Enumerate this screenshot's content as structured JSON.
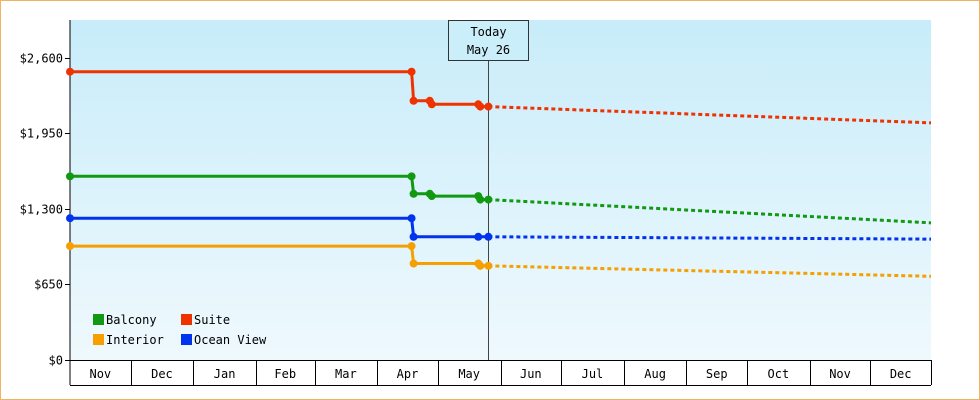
{
  "chart_data": {
    "type": "line",
    "style": "step",
    "title": "",
    "xlabel": "",
    "ylabel": "",
    "ylim": [
      0,
      2925
    ],
    "y_ticks": [
      0,
      650,
      1300,
      1950,
      2600
    ],
    "y_tick_labels": [
      "$0",
      "$650",
      "$1,300",
      "$1,950",
      "$2,600"
    ],
    "x_tick_labels": [
      "Nov",
      "Dec",
      "Jan",
      "Feb",
      "Mar",
      "Apr",
      "May",
      "Jun",
      "Jul",
      "Aug",
      "Sep",
      "Oct",
      "Nov",
      "Dec"
    ],
    "x_range": [
      "2015-11-01",
      "2016-12-31"
    ],
    "month_starts": [
      "2015-11-01",
      "2015-12-01",
      "2016-01-01",
      "2016-02-01",
      "2016-03-01",
      "2016-04-01",
      "2016-05-01",
      "2016-06-01",
      "2016-07-01",
      "2016-08-01",
      "2016-09-01",
      "2016-10-01",
      "2016-11-01",
      "2016-12-01",
      "2016-12-31"
    ],
    "today": {
      "date": "2016-05-26",
      "line1": "Today",
      "line2": "May 26"
    },
    "background": {
      "top": "#c8ecfa",
      "bottom": "#eff9fd"
    },
    "grid": false,
    "legend": "bottom-left",
    "series": [
      {
        "name": "Suite",
        "color": "#ee3300",
        "points": [
          [
            "2015-11-01",
            2480
          ],
          [
            "2016-04-18",
            2480
          ],
          [
            "2016-04-19",
            2230
          ],
          [
            "2016-04-27",
            2230
          ],
          [
            "2016-04-28",
            2200
          ],
          [
            "2016-05-21",
            2200
          ],
          [
            "2016-05-22",
            2180
          ],
          [
            "2016-05-26",
            2180
          ]
        ],
        "marker_dates": [
          "2015-11-01",
          "2016-04-18",
          "2016-04-19",
          "2016-04-27",
          "2016-04-28",
          "2016-05-21",
          "2016-05-22",
          "2016-05-26"
        ],
        "projection": [
          [
            "2016-05-26",
            2180
          ],
          [
            "2016-12-31",
            2040
          ]
        ]
      },
      {
        "name": "Balcony",
        "color": "#119911",
        "points": [
          [
            "2015-11-01",
            1580
          ],
          [
            "2016-04-18",
            1580
          ],
          [
            "2016-04-19",
            1430
          ],
          [
            "2016-04-27",
            1430
          ],
          [
            "2016-04-28",
            1410
          ],
          [
            "2016-05-21",
            1410
          ],
          [
            "2016-05-22",
            1380
          ],
          [
            "2016-05-26",
            1380
          ]
        ],
        "marker_dates": [
          "2015-11-01",
          "2016-04-18",
          "2016-04-19",
          "2016-04-27",
          "2016-04-28",
          "2016-05-21",
          "2016-05-22",
          "2016-05-26"
        ],
        "projection": [
          [
            "2016-05-26",
            1380
          ],
          [
            "2016-12-31",
            1180
          ]
        ]
      },
      {
        "name": "Ocean View",
        "color": "#0033ee",
        "points": [
          [
            "2015-11-01",
            1220
          ],
          [
            "2016-04-18",
            1220
          ],
          [
            "2016-04-19",
            1060
          ],
          [
            "2016-05-26",
            1060
          ]
        ],
        "marker_dates": [
          "2015-11-01",
          "2016-04-18",
          "2016-04-19",
          "2016-05-21",
          "2016-05-26"
        ],
        "projection": [
          [
            "2016-05-26",
            1060
          ],
          [
            "2016-12-31",
            1040
          ]
        ]
      },
      {
        "name": "Interior",
        "color": "#f5a000",
        "points": [
          [
            "2015-11-01",
            980
          ],
          [
            "2016-04-18",
            980
          ],
          [
            "2016-04-19",
            830
          ],
          [
            "2016-05-21",
            830
          ],
          [
            "2016-05-22",
            810
          ],
          [
            "2016-05-26",
            810
          ]
        ],
        "marker_dates": [
          "2015-11-01",
          "2016-04-18",
          "2016-04-19",
          "2016-05-21",
          "2016-05-22",
          "2016-05-26"
        ],
        "projection": [
          [
            "2016-05-26",
            810
          ],
          [
            "2016-12-31",
            720
          ]
        ]
      }
    ],
    "legend_entries": [
      {
        "name": "Balcony",
        "color": "#119911"
      },
      {
        "name": "Suite",
        "color": "#ee3300"
      },
      {
        "name": "Interior",
        "color": "#f5a000"
      },
      {
        "name": "Ocean View",
        "color": "#0033ee"
      }
    ]
  }
}
